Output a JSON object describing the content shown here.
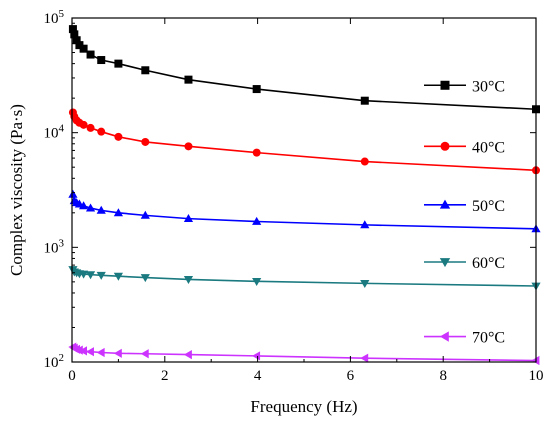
{
  "chart_data": {
    "type": "line",
    "xlabel": "Frequency (Hz)",
    "ylabel": "Complex viscosity (Pa·s)",
    "xlim": [
      0,
      10
    ],
    "ylim": [
      100,
      100000
    ],
    "yscale": "log",
    "x_ticks": [
      "0",
      "2",
      "4",
      "6",
      "8",
      "10"
    ],
    "y_ticks": [
      {
        "value": 100,
        "base": "10",
        "exp": "2"
      },
      {
        "value": 1000,
        "base": "10",
        "exp": "3"
      },
      {
        "value": 10000,
        "base": "10",
        "exp": "4"
      },
      {
        "value": 100000,
        "base": "10",
        "exp": "5"
      }
    ],
    "legend_position": "right, one entry beside each curve",
    "series": [
      {
        "name": "30°C",
        "color": "#000000",
        "marker": "square",
        "x": [
          0.02,
          0.05,
          0.1,
          0.16,
          0.25,
          0.4,
          0.63,
          1.0,
          1.58,
          2.51,
          3.98,
          6.31,
          10.0
        ],
        "y": [
          80000,
          72000,
          64000,
          58000,
          54000,
          48000,
          43000,
          40000,
          35000,
          29000,
          24000,
          19000,
          16000
        ]
      },
      {
        "name": "40°C",
        "color": "#ff0000",
        "marker": "circle",
        "x": [
          0.02,
          0.05,
          0.1,
          0.16,
          0.25,
          0.4,
          0.63,
          1.0,
          1.58,
          2.51,
          3.98,
          6.31,
          10.0
        ],
        "y": [
          15000,
          13800,
          12800,
          12200,
          11700,
          11000,
          10200,
          9200,
          8300,
          7600,
          6700,
          5600,
          4700
        ]
      },
      {
        "name": "50°C",
        "color": "#0000ff",
        "marker": "triangle-up",
        "x": [
          0.02,
          0.05,
          0.1,
          0.16,
          0.25,
          0.4,
          0.63,
          1.0,
          1.58,
          2.51,
          3.98,
          6.31,
          10.0
        ],
        "y": [
          2900,
          2550,
          2450,
          2380,
          2300,
          2200,
          2100,
          2000,
          1900,
          1780,
          1680,
          1570,
          1450
        ]
      },
      {
        "name": "60°C",
        "color": "#1a7a80",
        "marker": "triangle-down",
        "x": [
          0.02,
          0.05,
          0.1,
          0.16,
          0.25,
          0.4,
          0.63,
          1.0,
          1.58,
          2.51,
          3.98,
          6.31,
          10.0
        ],
        "y": [
          640,
          610,
          600,
          590,
          585,
          578,
          570,
          560,
          545,
          525,
          505,
          485,
          460
        ]
      },
      {
        "name": "70°C",
        "color": "#cc33ff",
        "marker": "triangle-left",
        "x": [
          0.02,
          0.05,
          0.1,
          0.16,
          0.25,
          0.4,
          0.63,
          1.0,
          1.58,
          2.51,
          3.98,
          6.31,
          10.0
        ],
        "y": [
          135,
          132,
          129,
          127,
          125,
          123,
          121,
          119,
          118,
          116,
          113,
          108,
          103
        ]
      }
    ]
  }
}
